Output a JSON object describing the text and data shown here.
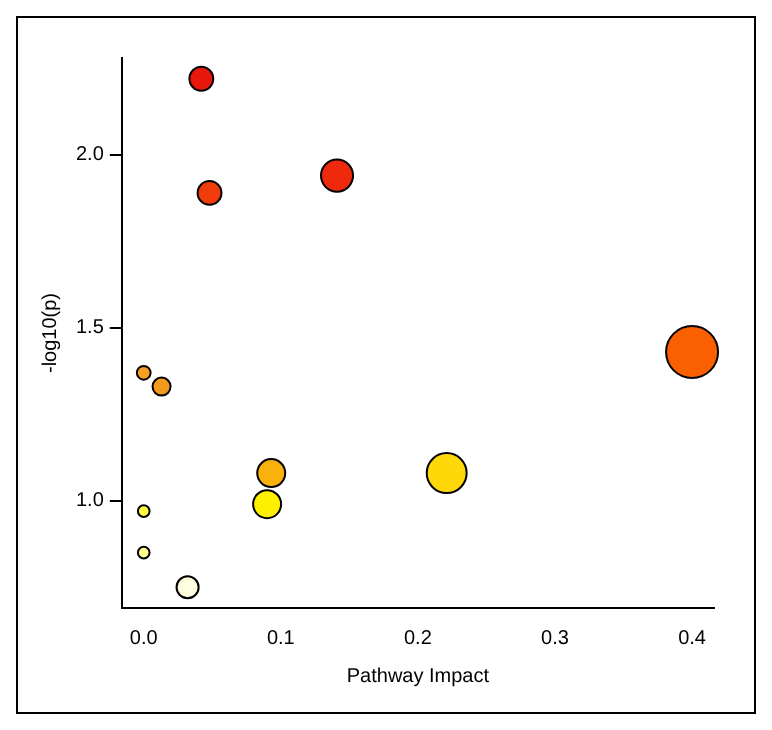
{
  "chart_data": {
    "type": "bubble",
    "xlabel": "Pathway Impact",
    "ylabel": "-log10(p)",
    "x": [
      0.042,
      0.048,
      0.141,
      0.4,
      0,
      0.013,
      0.093,
      0.221,
      0.09,
      0,
      0,
      0.032
    ],
    "values": [
      2.22,
      1.89,
      1.94,
      1.43,
      1.37,
      1.33,
      1.08,
      1.08,
      0.99,
      0.97,
      0.85,
      0.75
    ],
    "sizes": [
      0.21,
      0.21,
      0.38,
      1,
      0.07,
      0.12,
      0.29,
      0.59,
      0.29,
      0.05,
      0.05,
      0.18
    ],
    "colors": [
      "#e8170c",
      "#f03c0a",
      "#ef2a0c",
      "#fb6000",
      "#f5a020",
      "#f29a1e",
      "#f9b20c",
      "#ffd80a",
      "#fff000",
      "#fffc40",
      "#ffff90",
      "#fffde0"
    ],
    "xlim": [
      -0.016,
      0.416
    ],
    "xticks": [
      {
        "value": 0,
        "label": "0.0"
      },
      0.1,
      0.2,
      0.3,
      0.4
    ],
    "ylim": [
      0.69,
      2.28
    ],
    "yticks": [
      {
        "value": 1,
        "label": "1.0"
      },
      1.5,
      {
        "value": 2,
        "label": "2.0"
      }
    ],
    "grid": false,
    "legend": false
  }
}
